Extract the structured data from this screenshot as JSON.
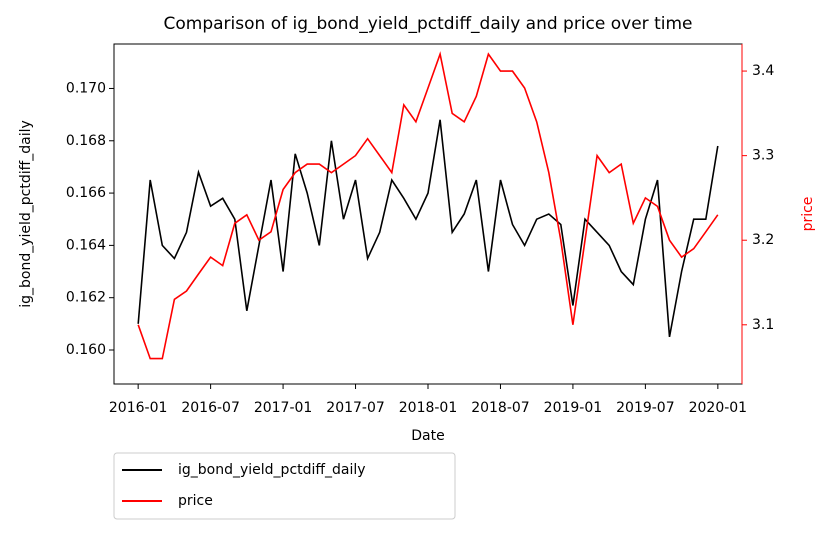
{
  "chart_data": {
    "type": "line",
    "title": "Comparison of ig_bond_yield_pctdiff_daily and price over time",
    "x_label": "Date",
    "y_label": "ig_bond_yield_pctdiff_daily",
    "y2_label": "price",
    "x": [
      "2016-01",
      "2016-02",
      "2016-03",
      "2016-04",
      "2016-05",
      "2016-06",
      "2016-07",
      "2016-08",
      "2016-09",
      "2016-10",
      "2016-11",
      "2016-12",
      "2017-01",
      "2017-02",
      "2017-03",
      "2017-04",
      "2017-05",
      "2017-06",
      "2017-07",
      "2017-08",
      "2017-09",
      "2017-10",
      "2017-11",
      "2017-12",
      "2018-01",
      "2018-02",
      "2018-03",
      "2018-04",
      "2018-05",
      "2018-06",
      "2018-07",
      "2018-08",
      "2018-09",
      "2018-10",
      "2018-11",
      "2018-12",
      "2019-01",
      "2019-02",
      "2019-03",
      "2019-04",
      "2019-05",
      "2019-06",
      "2019-07",
      "2019-08",
      "2019-09",
      "2019-10",
      "2019-11",
      "2019-12",
      "2020-01"
    ],
    "xlim": [
      "2015-11",
      "2020-03"
    ],
    "xticks": [
      "2016-01",
      "2016-07",
      "2017-01",
      "2017-07",
      "2018-01",
      "2018-07",
      "2019-01",
      "2019-07",
      "2020-01"
    ],
    "ylim": [
      0.1587,
      0.1717
    ],
    "yticks": [
      {
        "value": 0.16,
        "label": "0.160"
      },
      {
        "value": 0.162,
        "label": "0.162"
      },
      {
        "value": 0.164,
        "label": "0.164"
      },
      {
        "value": 0.166,
        "label": "0.166"
      },
      {
        "value": 0.168,
        "label": "0.168"
      },
      {
        "value": 0.17,
        "label": "0.170"
      }
    ],
    "y2lim": [
      3.03,
      3.432
    ],
    "y2ticks": [
      3.1,
      3.2,
      3.3,
      3.4
    ],
    "y2_color": "#ff0000",
    "legend": "lower left outside",
    "series": [
      {
        "name": "ig_bond_yield_pctdiff_daily",
        "color": "#000000",
        "values": [
          0.161,
          0.1665,
          0.164,
          0.1635,
          0.1645,
          0.1668,
          0.1655,
          0.1658,
          0.165,
          0.1615,
          0.164,
          0.1665,
          0.163,
          0.1675,
          0.166,
          0.164,
          0.168,
          0.165,
          0.1665,
          0.1635,
          0.1645,
          0.1665,
          0.1658,
          0.165,
          0.166,
          0.1688,
          0.1645,
          0.1652,
          0.1665,
          0.163,
          0.1665,
          0.1648,
          0.164,
          0.165,
          0.1652,
          0.1648,
          0.1617,
          0.165,
          0.1645,
          0.164,
          0.163,
          0.1625,
          0.165,
          0.1665,
          0.1605,
          0.163,
          0.165,
          0.165,
          0.1678
        ]
      },
      {
        "name": "price",
        "color": "#ff0000",
        "axis": "y2",
        "values": [
          3.1,
          3.06,
          3.06,
          3.13,
          3.14,
          3.16,
          3.18,
          3.17,
          3.22,
          3.23,
          3.2,
          3.21,
          3.26,
          3.28,
          3.29,
          3.29,
          3.28,
          3.29,
          3.3,
          3.32,
          3.3,
          3.28,
          3.36,
          3.34,
          3.38,
          3.42,
          3.35,
          3.34,
          3.37,
          3.42,
          3.4,
          3.4,
          3.38,
          3.34,
          3.28,
          3.2,
          3.1,
          3.2,
          3.3,
          3.28,
          3.29,
          3.22,
          3.25,
          3.24,
          3.2,
          3.18,
          3.19,
          3.21,
          3.23
        ]
      }
    ]
  }
}
